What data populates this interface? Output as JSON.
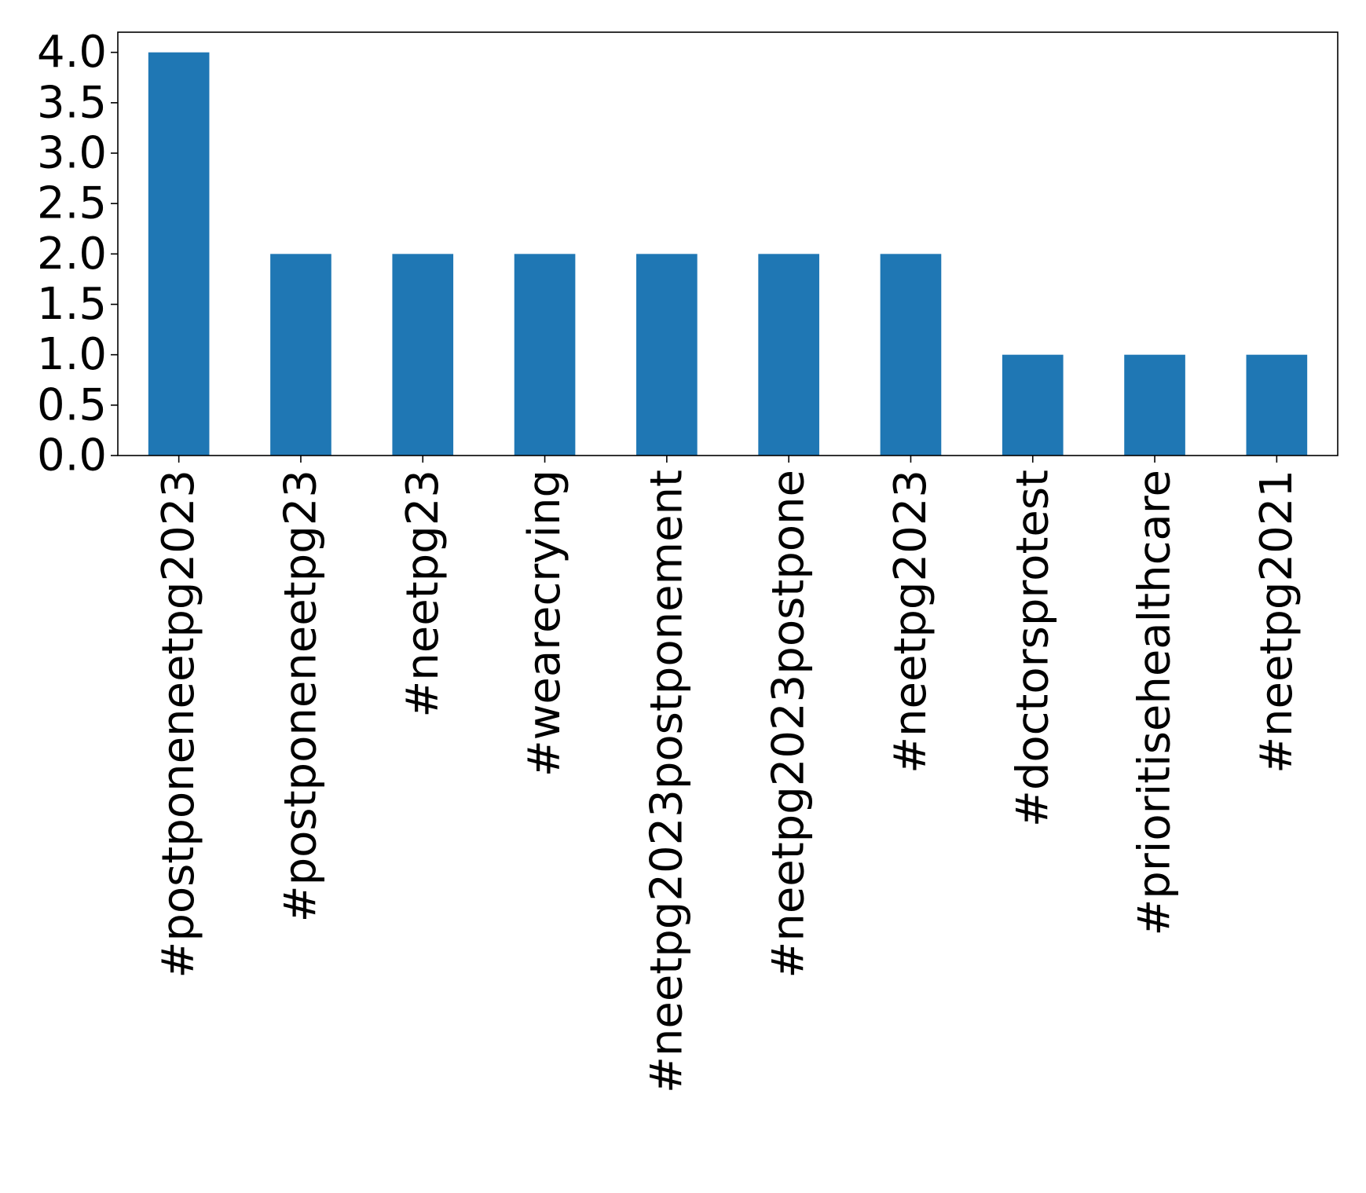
{
  "chart_data": {
    "type": "bar",
    "title": "",
    "xlabel": "",
    "ylabel": "",
    "categories": [
      "#postponeneetpg2023",
      "#postponeneetpg23",
      "#neetpg23",
      "#wearecrying",
      "#neetpg2023postponement",
      "#neetpg2023postpone",
      "#neetpg2023",
      "#doctorsprotest",
      "#prioritisehealthcare",
      "#neetpg2021"
    ],
    "values": [
      4,
      2,
      2,
      2,
      2,
      2,
      2,
      1,
      1,
      1
    ],
    "ylim": [
      0,
      4.2
    ],
    "yticks": [
      "0.0",
      "0.5",
      "1.0",
      "1.5",
      "2.0",
      "2.5",
      "3.0",
      "3.5",
      "4.0"
    ],
    "bar_color": "#1f77b4",
    "grid": false,
    "legend": "none"
  }
}
